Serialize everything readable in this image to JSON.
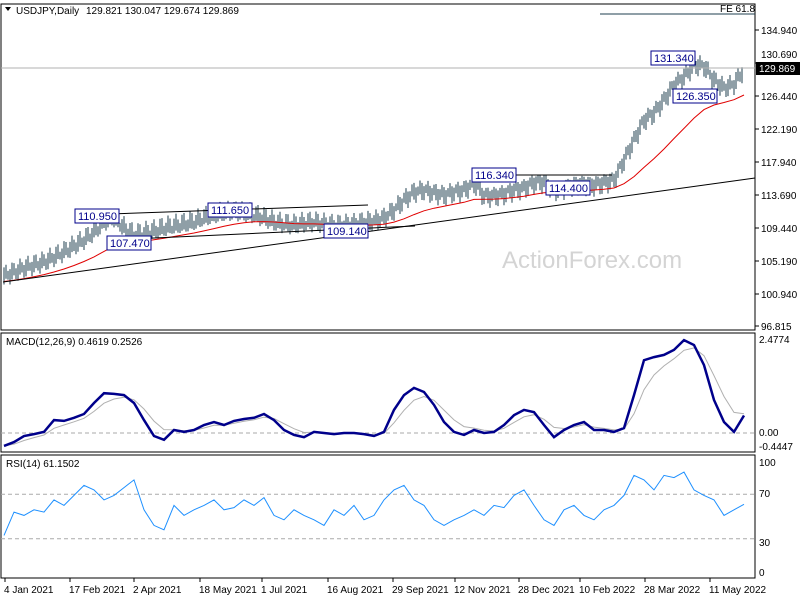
{
  "header": {
    "symbol": "USDJPY,Daily",
    "ohlc": "129.821 130.047 129.674 129.869"
  },
  "fe_label": "FE 61.8",
  "watermark": "ActionForex.com",
  "current_price": "129.869",
  "annotations": [
    "110.950",
    "111.650",
    "107.470",
    "109.140",
    "116.340",
    "114.400",
    "131.340",
    "126.350"
  ],
  "colors": {
    "bars": "#1f3f4f",
    "ma": "#e00000",
    "macd": "#00008b",
    "signal": "#b0b0b0",
    "rsi": "#1e90ff",
    "label": "#00008b"
  },
  "chart_data": [
    {
      "type": "line",
      "title": "USDJPY,Daily",
      "price_ticks": [
        "134.940",
        "130.690",
        "126.440",
        "122.190",
        "117.940",
        "113.690",
        "109.440",
        "105.190",
        "100.940",
        "96.815"
      ],
      "ylim": [
        96.3,
        138.3
      ],
      "date_ticks": [
        "4 Jan 2021",
        "17 Feb 2021",
        "2 Apr 2021",
        "18 May 2021",
        "1 Jul 2021",
        "16 Aug 2021",
        "29 Sep 2021",
        "12 Nov 2021",
        "28 Dec 2021",
        "10 Feb 2022",
        "28 Mar 2022",
        "11 May 2022"
      ],
      "sampling": "weekly approx closes",
      "closes": [
        103.26,
        103.77,
        104.29,
        104.67,
        105.06,
        105.7,
        106.35,
        107.12,
        107.89,
        108.92,
        110.21,
        110.73,
        109.44,
        108.54,
        108.79,
        109.05,
        109.44,
        109.7,
        109.95,
        110.21,
        110.73,
        111.11,
        111.37,
        111.5,
        111.37,
        111.11,
        110.73,
        110.21,
        109.95,
        109.82,
        110.08,
        110.21,
        109.95,
        109.82,
        109.82,
        109.95,
        110.21,
        110.34,
        110.73,
        111.76,
        113.04,
        114.07,
        114.33,
        113.95,
        113.69,
        114.07,
        114.33,
        115.23,
        113.56,
        113.56,
        113.82,
        114.33,
        114.59,
        115.23,
        115.36,
        114.33,
        114.59,
        114.98,
        115.1,
        114.98,
        115.23,
        115.62,
        118.2,
        120.77,
        123.35,
        124.25,
        125.92,
        127.86,
        128.89,
        130.43,
        130.3,
        128.5,
        127.47,
        127.98,
        129.87
      ]
    },
    {
      "type": "line",
      "title": "MACD(12,26,9) 0.4619 0.2526",
      "ticks": [
        "2.4774",
        "0.00",
        "-0.4447"
      ],
      "ylim": [
        -0.4447,
        2.4774
      ],
      "macd": [
        -0.34,
        -0.24,
        -0.08,
        -0.03,
        0.03,
        0.34,
        0.32,
        0.4,
        0.5,
        0.79,
        1.05,
        1.03,
        1.0,
        0.79,
        0.34,
        -0.08,
        -0.18,
        0.08,
        0.03,
        0.08,
        0.21,
        0.29,
        0.21,
        0.32,
        0.37,
        0.4,
        0.5,
        0.34,
        0.08,
        -0.05,
        -0.11,
        0.03,
        0.0,
        -0.03,
        0.0,
        0.0,
        -0.03,
        -0.08,
        0.03,
        0.61,
        1.0,
        1.19,
        1.08,
        0.74,
        0.29,
        0.03,
        -0.05,
        0.08,
        0.0,
        0.03,
        0.21,
        0.47,
        0.61,
        0.55,
        0.21,
        -0.11,
        0.08,
        0.21,
        0.29,
        0.08,
        0.08,
        0.03,
        0.13,
        1.0,
        1.92,
        2.0,
        2.06,
        2.19,
        2.45,
        2.32,
        1.79,
        0.87,
        0.29,
        0.03,
        0.46
      ]
    },
    {
      "type": "line",
      "title": "RSI(14) 61.1502",
      "ticks": [
        "100",
        "70",
        "30",
        "0"
      ],
      "ylim": [
        0,
        100
      ],
      "levels": [
        70,
        30
      ],
      "rsi": [
        33,
        54,
        51,
        56,
        54,
        65,
        60,
        69,
        78,
        74,
        65,
        69,
        76,
        83,
        56,
        42,
        38,
        60,
        51,
        56,
        60,
        65,
        56,
        58,
        65,
        60,
        67,
        51,
        47,
        56,
        51,
        47,
        42,
        56,
        51,
        60,
        47,
        51,
        65,
        74,
        78,
        65,
        60,
        47,
        42,
        47,
        51,
        56,
        51,
        60,
        58,
        69,
        74,
        60,
        47,
        42,
        56,
        60,
        51,
        47,
        56,
        60,
        69,
        87,
        83,
        74,
        87,
        85,
        90,
        74,
        69,
        65,
        51,
        56,
        61
      ]
    }
  ]
}
